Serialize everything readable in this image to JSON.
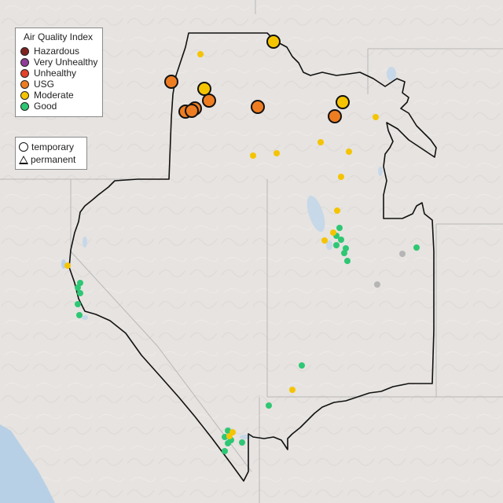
{
  "legend": {
    "title": "Air Quality Index",
    "categories": [
      {
        "label": "Hazardous",
        "color": "#7e2321"
      },
      {
        "label": "Very Unhealthy",
        "color": "#8f3f97"
      },
      {
        "label": "Unhealthy",
        "color": "#e5422b"
      },
      {
        "label": "USG",
        "color": "#ee7d22"
      },
      {
        "label": "Moderate",
        "color": "#f5c400"
      },
      {
        "label": "Good",
        "color": "#2ec774"
      }
    ],
    "monitor_types": [
      {
        "label": "temporary",
        "icon": "circle-icon"
      },
      {
        "label": "permanent",
        "icon": "triangle-icon"
      }
    ]
  },
  "colors": {
    "land": "#e6e3e0",
    "water": "#b8d0e6",
    "boundary": "#111111",
    "state_lines": "#b9b9b9",
    "no_data": "#b5b5b5"
  }
}
